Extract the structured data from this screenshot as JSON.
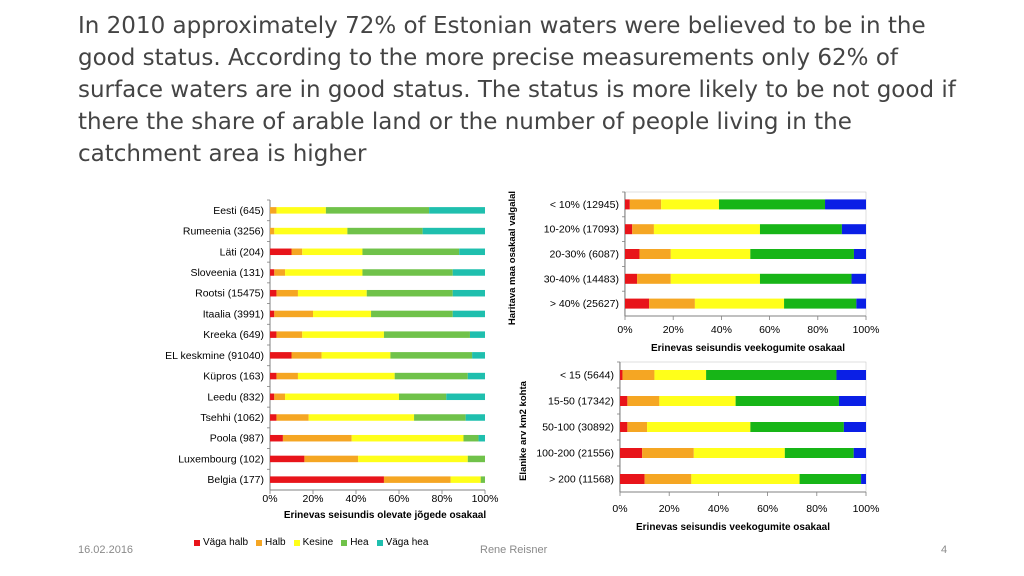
{
  "slide": {
    "title": "In 2010 approximately 72% of Estonian waters were believed to be in the good status. According to the more precise measurements only 62% of surface waters are in good status. The status is more likely to be not good if there the share of arable land or the number of people living in the catchment area is higher",
    "date": "16.02.2016",
    "author": "Rene Reisner",
    "page": "4"
  },
  "chart_data": [
    {
      "type": "bar",
      "stacked": "percent",
      "orientation": "horizontal",
      "categories": [
        "Eesti (645)",
        "Rumeenia (3256)",
        "Läti (204)",
        "Sloveenia (131)",
        "Rootsi (15475)",
        "Itaalia (3991)",
        "Kreeka (649)",
        "EL keskmine (91040)",
        "Küpros (163)",
        "Leedu (832)",
        "Tsehhi (1062)",
        "Poola (987)",
        "Luxembourg (102)",
        "Belgia (177)"
      ],
      "series": [
        {
          "name": "Väga halb",
          "values": [
            0,
            0,
            10,
            2,
            3,
            2,
            3,
            10,
            3,
            2,
            3,
            6,
            16,
            53
          ]
        },
        {
          "name": "Halb",
          "values": [
            3,
            2,
            5,
            5,
            10,
            18,
            12,
            14,
            10,
            5,
            15,
            32,
            25,
            31
          ]
        },
        {
          "name": "Kesine",
          "values": [
            23,
            34,
            28,
            36,
            32,
            27,
            38,
            32,
            45,
            53,
            49,
            52,
            51,
            14
          ]
        },
        {
          "name": "Hea",
          "values": [
            48,
            35,
            45,
            42,
            40,
            38,
            40,
            38,
            34,
            22,
            24,
            7,
            8,
            2
          ]
        },
        {
          "name": "Väga hea",
          "values": [
            26,
            29,
            12,
            15,
            15,
            15,
            7,
            6,
            8,
            18,
            9,
            3,
            0,
            0
          ]
        }
      ],
      "xlabel": "Erinevas seisundis olevate jõgede osakaal",
      "xticks": [
        "0%",
        "20%",
        "40%",
        "60%",
        "80%",
        "100%"
      ],
      "xlim": [
        0,
        100
      ],
      "legend": "bottom"
    },
    {
      "type": "bar",
      "stacked": "percent",
      "orientation": "horizontal",
      "categories": [
        "< 10% (12945)",
        "10-20% (17093)",
        "20-30% (6087)",
        "30-40% (14483)",
        "> 40% (25627)"
      ],
      "series": [
        {
          "name": "Väga halb",
          "values": [
            2,
            3,
            6,
            5,
            10
          ]
        },
        {
          "name": "Halb",
          "values": [
            13,
            9,
            13,
            14,
            19
          ]
        },
        {
          "name": "Kesine",
          "values": [
            24,
            44,
            33,
            37,
            37
          ]
        },
        {
          "name": "Hea",
          "values": [
            44,
            34,
            43,
            38,
            30
          ]
        },
        {
          "name": "Väga hea",
          "values": [
            17,
            10,
            5,
            6,
            4
          ]
        }
      ],
      "ylabel": "Haritava maa osakaal valgalal",
      "xlabel": "Erinevas seisundis veekogumite osakaal",
      "xticks": [
        "0%",
        "20%",
        "40%",
        "60%",
        "80%",
        "100%"
      ],
      "xlim": [
        0,
        100
      ]
    },
    {
      "type": "bar",
      "stacked": "percent",
      "orientation": "horizontal",
      "categories": [
        "< 15 (5644)",
        "15-50 (17342)",
        "50-100 (30892)",
        "100-200 (21556)",
        "> 200 (11568)"
      ],
      "series": [
        {
          "name": "Väga halb",
          "values": [
            1,
            3,
            3,
            9,
            10
          ]
        },
        {
          "name": "Halb",
          "values": [
            13,
            13,
            8,
            21,
            19
          ]
        },
        {
          "name": "Kesine",
          "values": [
            21,
            31,
            42,
            37,
            44
          ]
        },
        {
          "name": "Hea",
          "values": [
            53,
            42,
            38,
            28,
            25
          ]
        },
        {
          "name": "Väga hea",
          "values": [
            12,
            11,
            9,
            5,
            2
          ]
        }
      ],
      "ylabel": "Elanike arv km2 kohta",
      "xlabel": "Erinevas seisundis  veekogumite osakaal",
      "xticks": [
        "0%",
        "20%",
        "40%",
        "60%",
        "80%",
        "100%"
      ],
      "xlim": [
        0,
        100
      ]
    }
  ],
  "colors": {
    "Väga halb": "#e8141a",
    "Halb": "#f5a623",
    "Kesine": "#ffff1a",
    "Hea": "#70c24a",
    "Väga hea": "#1fbfae",
    "small_charts": [
      "#e8141a",
      "#f5a623",
      "#ffff1a",
      "#17b517",
      "#0a1fe6"
    ]
  }
}
